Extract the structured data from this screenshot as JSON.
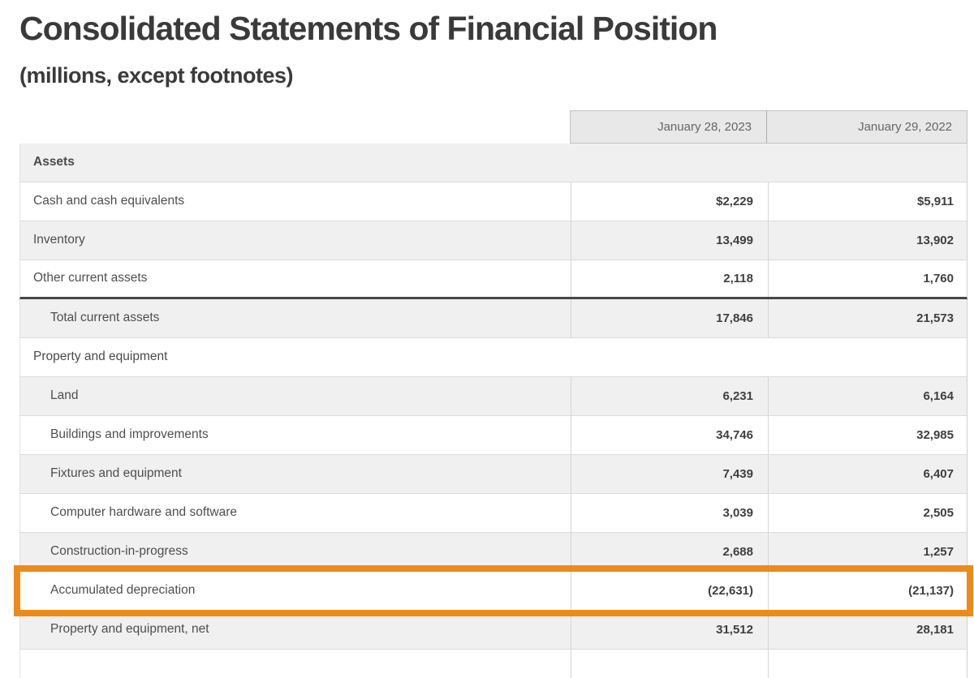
{
  "page": {
    "title": "Consolidated Statements of Financial Position",
    "subtitle": "(millions, except footnotes)"
  },
  "table": {
    "column_headers": [
      "January 28, 2023",
      "January 29, 2022"
    ],
    "rows": [
      {
        "label": "Assets",
        "values": [
          "",
          ""
        ],
        "type": "section"
      },
      {
        "label": "Cash and cash equivalents",
        "values": [
          "$2,229",
          "$5,911"
        ],
        "type": "item"
      },
      {
        "label": "Inventory",
        "values": [
          "13,499",
          "13,902"
        ],
        "type": "item"
      },
      {
        "label": "Other current assets",
        "values": [
          "2,118",
          "1,760"
        ],
        "type": "item"
      },
      {
        "label": "Total current assets",
        "values": [
          "17,846",
          "21,573"
        ],
        "type": "subtotal"
      },
      {
        "label": "Property and equipment",
        "values": [
          "",
          ""
        ],
        "type": "section"
      },
      {
        "label": "Land",
        "values": [
          "6,231",
          "6,164"
        ],
        "type": "item"
      },
      {
        "label": "Buildings and improvements",
        "values": [
          "34,746",
          "32,985"
        ],
        "type": "item"
      },
      {
        "label": "Fixtures and equipment",
        "values": [
          "7,439",
          "6,407"
        ],
        "type": "item"
      },
      {
        "label": "Computer hardware and software",
        "values": [
          "3,039",
          "2,505"
        ],
        "type": "item"
      },
      {
        "label": "Construction-in-progress",
        "values": [
          "2,688",
          "1,257"
        ],
        "type": "item"
      },
      {
        "label": "Accumulated depreciation",
        "values": [
          "(22,631)",
          "(21,137)"
        ],
        "type": "item"
      },
      {
        "label": "Property and equipment, net",
        "values": [
          "31,512",
          "28,181"
        ],
        "type": "subtotal"
      }
    ],
    "highlight": {
      "row_label": "Accumulated depreciation",
      "color": "#ED8A19"
    }
  }
}
